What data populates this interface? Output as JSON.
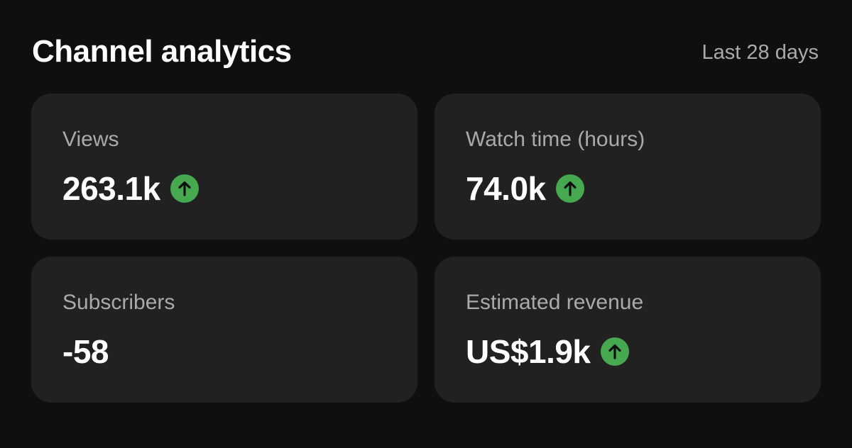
{
  "header": {
    "title": "Channel analytics",
    "period": "Last 28 days"
  },
  "cards": [
    {
      "label": "Views",
      "value": "263.1k",
      "trend_up": true
    },
    {
      "label": "Watch time (hours)",
      "value": "74.0k",
      "trend_up": true
    },
    {
      "label": "Subscribers",
      "value": "-58",
      "trend_up": false
    },
    {
      "label": "Estimated revenue",
      "value": "US$1.9k",
      "trend_up": true
    }
  ]
}
